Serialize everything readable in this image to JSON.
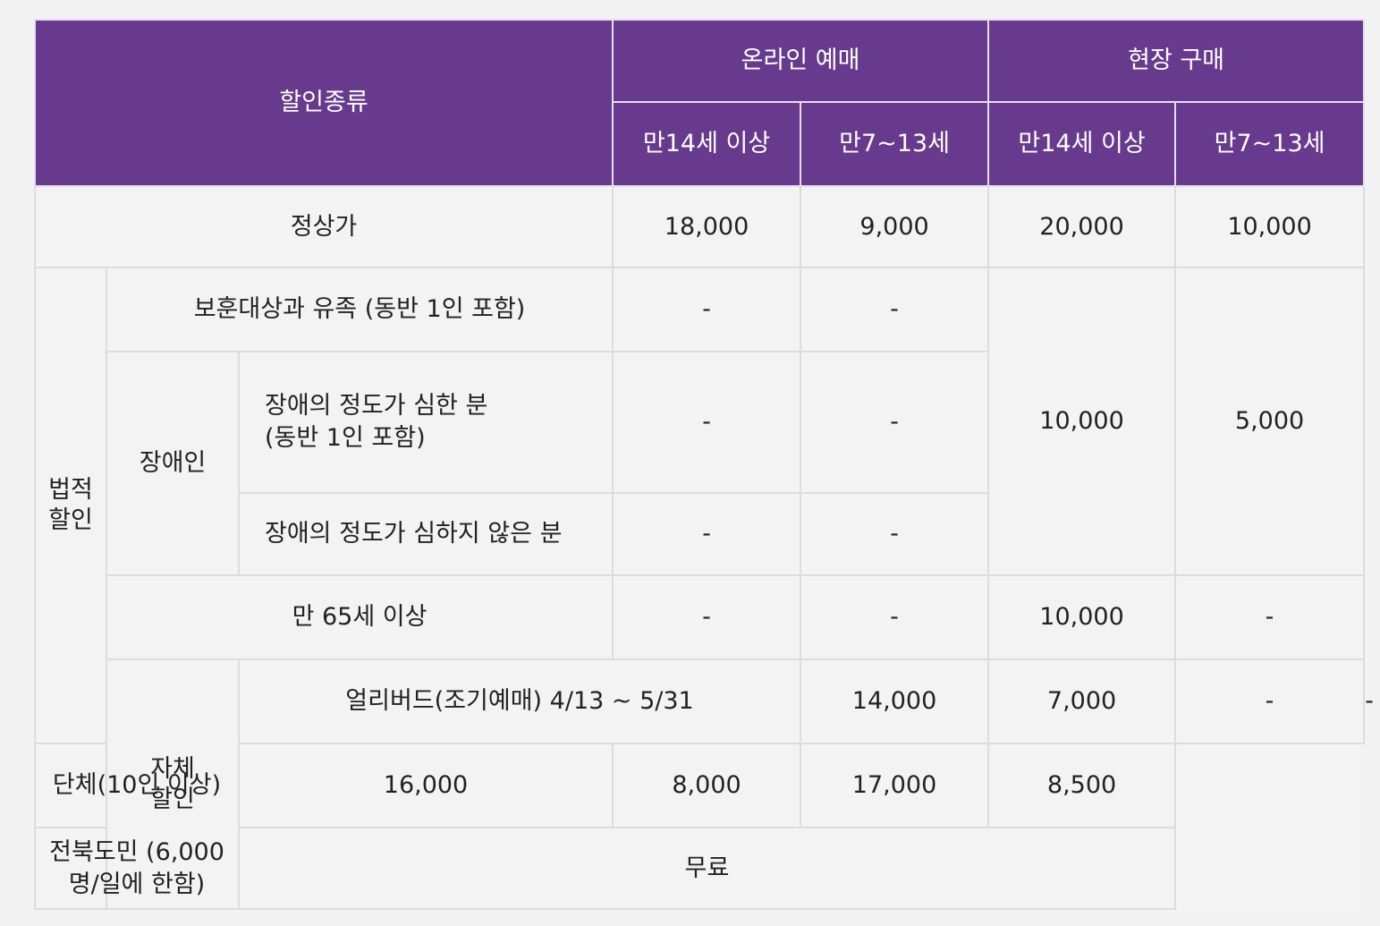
{
  "header": {
    "discount_type": "할인종류",
    "online": "온라인 예매",
    "onsite": "현장 구매",
    "age_14_plus": "만14세 이상",
    "age_7_13": "만7~13세"
  },
  "rows": {
    "regular": {
      "label": "정상가",
      "online_14": "18,000",
      "online_7": "9,000",
      "onsite_14": "20,000",
      "onsite_7": "10,000"
    },
    "legal_group": {
      "label_line1": "법적",
      "label_line2": "할인"
    },
    "veterans": {
      "label": "보훈대상과 유족 (동반 1인 포함)",
      "online_14": "-",
      "online_7": "-"
    },
    "disabled_group": {
      "label": "장애인"
    },
    "severe": {
      "label_line1": "장애의 정도가 심한 분",
      "label_line2": "(동반 1인 포함)",
      "online_14": "-",
      "online_7": "-"
    },
    "mild": {
      "label": "장애의 정도가 심하지 않은 분",
      "online_14": "-",
      "online_7": "-"
    },
    "legal_onsite": {
      "onsite_14": "10,000",
      "onsite_7": "5,000"
    },
    "senior": {
      "label": "만 65세 이상",
      "online_14": "-",
      "online_7": "-",
      "onsite_14": "10,000",
      "onsite_7": "-"
    },
    "own_group": {
      "label_line1": "자체",
      "label_line2": "할인"
    },
    "early_bird": {
      "label": "얼리버드(조기예매) 4/13 ~ 5/31",
      "online_14": "14,000",
      "online_7": "7,000",
      "onsite_14": "-",
      "onsite_7": "-"
    },
    "group": {
      "label": "단체(10인 이상)",
      "online_14": "16,000",
      "online_7": "8,000",
      "onsite_14": "17,000",
      "onsite_7": "8,500"
    },
    "jeonbuk": {
      "label": "전북도민 (6,000명/일에 한함)",
      "value": "무료"
    }
  },
  "colors": {
    "header_bg": "#673a8e",
    "header_text": "#ffffff",
    "cell_bg": "#f3f3f3",
    "border": "#dcdcdc"
  }
}
